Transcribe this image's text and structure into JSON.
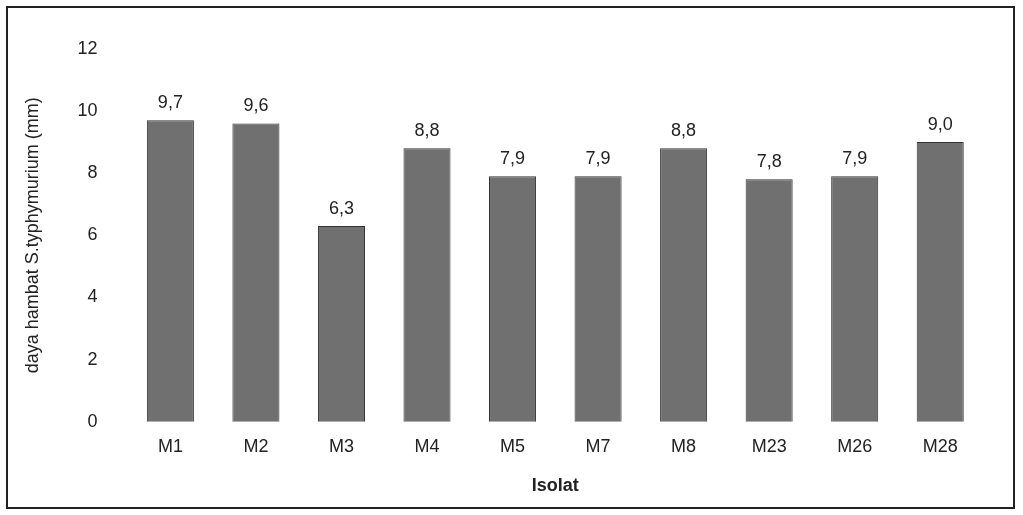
{
  "chart_data": {
    "type": "bar",
    "xlabel": "Isolat",
    "ylabel": "daya hambat S.typhymurium (mm)",
    "categories": [
      "M1",
      "M2",
      "M3",
      "M4",
      "M5",
      "M7",
      "M8",
      "M23",
      "M26",
      "M28"
    ],
    "values": [
      9.7,
      9.6,
      6.3,
      8.8,
      7.9,
      7.9,
      8.8,
      7.8,
      7.9,
      9.0
    ],
    "value_labels": [
      "9,7",
      "9,6",
      "6,3",
      "8,8",
      "7,9",
      "7,9",
      "8,8",
      "7,8",
      "7,9",
      "9,0"
    ],
    "color": "#707070",
    "ylim": [
      0,
      12
    ],
    "yticks": [
      0,
      2,
      4,
      6,
      8,
      10,
      12
    ],
    "grid": false,
    "legend": false
  }
}
